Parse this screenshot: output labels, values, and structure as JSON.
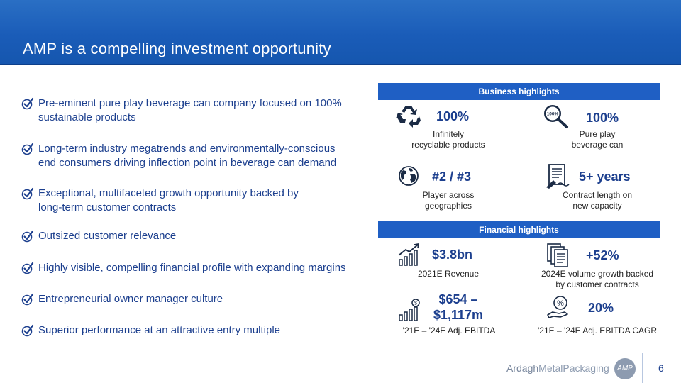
{
  "title": "AMP is a compelling investment opportunity",
  "bullets": [
    "Pre-eminent pure play beverage can company focused on 100% sustainable products",
    "Long-term industry megatrends and environmentally-conscious end consumers driving inflection point in beverage can demand",
    "Exceptional, multifaceted growth opportunity backed by long-term customer contracts",
    "Outsized customer relevance",
    "Highly visible, compelling financial profile with expanding margins",
    "Entrepreneurial owner manager culture",
    "Superior performance at an attractive entry multiple"
  ],
  "business": {
    "header": "Business highlights",
    "items": [
      {
        "value": "100%",
        "caption_line1": "Infinitely",
        "caption_line2": "recyclable products",
        "icon": "recycle-icon"
      },
      {
        "value": "100%",
        "caption_line1": "Pure play",
        "caption_line2": "beverage can",
        "icon": "magnifier-100-icon",
        "icon_text": "100%"
      },
      {
        "value": "#2 / #3",
        "caption_line1": "Player across",
        "caption_line2": "geographies",
        "icon": "globe-icon"
      },
      {
        "value": "5+ years",
        "caption_line1": "Contract length on",
        "caption_line2": "new capacity",
        "icon": "contract-icon"
      }
    ]
  },
  "financial": {
    "header": "Financial highlights",
    "items": [
      {
        "value": "$3.8bn",
        "caption_line1": "2021E Revenue",
        "caption_line2": "",
        "icon": "growth-chart-icon"
      },
      {
        "value": "+52%",
        "caption_line1": "2024E volume growth backed",
        "caption_line2": "by customer contracts",
        "icon": "documents-icon"
      },
      {
        "value_line1": "$654 –",
        "value_line2": "$1,117m",
        "caption_line1": "'21E – '24E Adj. EBITDA",
        "caption_line2": "",
        "icon": "dollar-chart-icon"
      },
      {
        "value": "20%",
        "caption_line1": "'21E – '24E Adj. EBITDA CAGR",
        "caption_line2": "",
        "icon": "percent-hand-icon"
      }
    ]
  },
  "footer": {
    "brand_a": "Ardagh",
    "brand_b": "MetalPackaging",
    "logo": "AMP",
    "page": "6"
  }
}
